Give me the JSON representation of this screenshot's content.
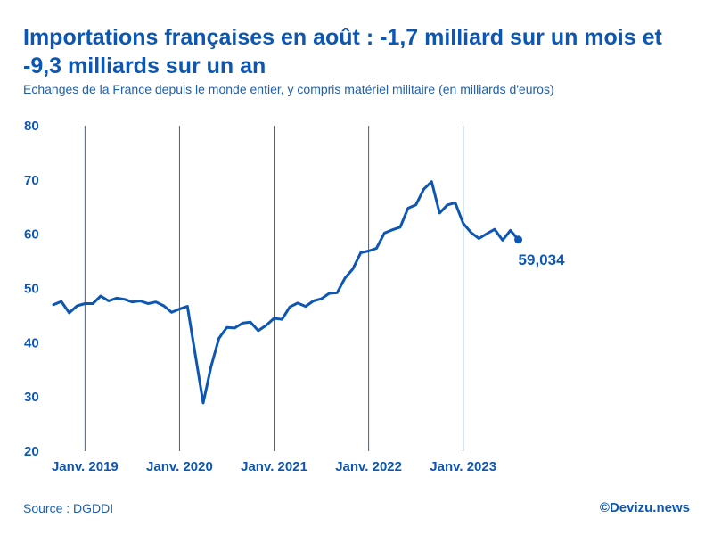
{
  "chart_data": {
    "type": "line",
    "title": "Importations françaises en août : -1,7 milliard sur un mois et -9,3 milliards sur un an",
    "subtitle": "Echanges de la France depuis le monde entier, y compris matériel militaire (en milliards d'euros)",
    "xlabel": "",
    "ylabel": "",
    "ylim": [
      20,
      80
    ],
    "y_ticks": [
      "80",
      "70",
      "60",
      "50",
      "40",
      "30",
      "20"
    ],
    "x_tick_labels": [
      "Janv. 2019",
      "Janv. 2020",
      "Janv. 2021",
      "Janv. 2022",
      "Janv. 2023"
    ],
    "grid": "vertical lines at each January",
    "series": [
      {
        "name": "Importations",
        "color": "#0d57b3",
        "start": "2018-09",
        "values": [
          47.0,
          47.6,
          45.5,
          46.8,
          47.2,
          47.2,
          48.6,
          47.7,
          48.2,
          48.0,
          47.5,
          47.7,
          47.2,
          47.5,
          46.8,
          45.6,
          46.2,
          46.7,
          37.8,
          28.9,
          35.6,
          40.8,
          42.8,
          42.7,
          43.6,
          43.8,
          42.2,
          43.2,
          44.5,
          44.3,
          46.6,
          47.3,
          46.7,
          47.7,
          48.1,
          49.1,
          49.2,
          51.9,
          53.6,
          56.6,
          56.9,
          57.4,
          60.2,
          60.8,
          61.3,
          64.8,
          65.4,
          68.3,
          69.7,
          63.9,
          65.4,
          65.8,
          62.0,
          60.3,
          59.2,
          60.1,
          60.9,
          58.9,
          60.7,
          59.0
        ]
      }
    ],
    "last_value_label": "59,034"
  },
  "footer": {
    "source": "Source : DGDDI",
    "brand": "©Devizu.news"
  }
}
